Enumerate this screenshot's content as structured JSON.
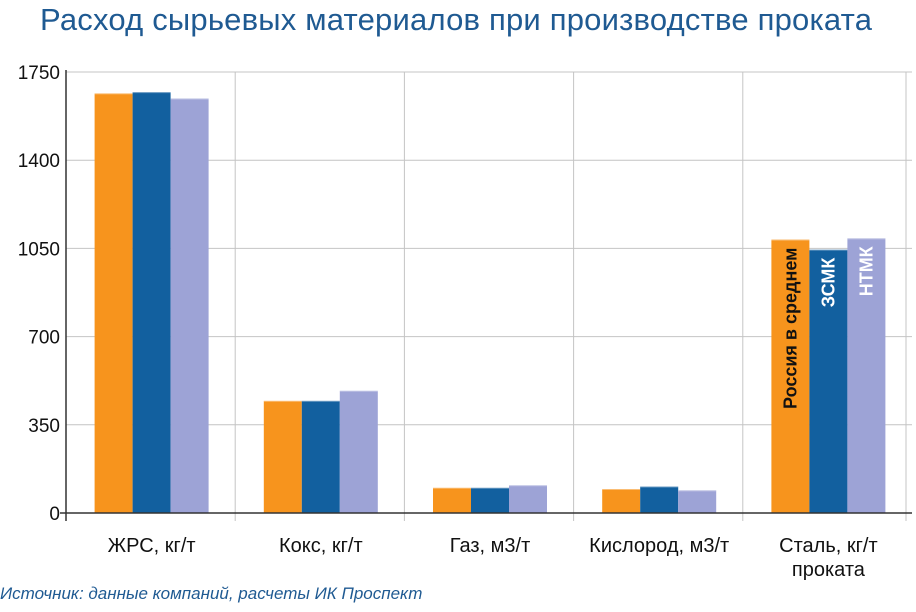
{
  "chart_data": {
    "type": "bar",
    "title": "Расход сырьевых материалов при производстве проката",
    "source": "Источник: данные компаний, расчеты ИК Проспект",
    "categories": [
      [
        "ЖРС, кг/т"
      ],
      [
        "Кокс, кг/т"
      ],
      [
        "Газ, м3/т"
      ],
      [
        "Кислород, м3/т"
      ],
      [
        "Сталь, кг/т",
        "проката"
      ]
    ],
    "series": [
      {
        "name": "Россия в среднем",
        "color": "#f7941d",
        "label_color": "#111111",
        "values": [
          1665,
          445,
          100,
          95,
          1085
        ]
      },
      {
        "name": "ЗСМК",
        "color": "#12609f",
        "label_color": "#ffffff",
        "values": [
          1670,
          445,
          100,
          105,
          1045
        ]
      },
      {
        "name": "НТМК",
        "color": "#9da3d6",
        "label_color": "#ffffff",
        "values": [
          1645,
          485,
          110,
          90,
          1090
        ]
      }
    ],
    "yticks": [
      "0",
      "350",
      "700",
      "1050",
      "1400",
      "1750"
    ],
    "ylim": [
      0,
      1750
    ],
    "grid": true
  }
}
